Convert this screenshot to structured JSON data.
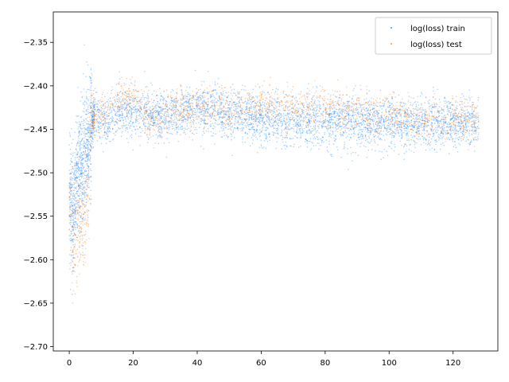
{
  "chart_data": {
    "type": "scatter",
    "title": "",
    "xlabel": "",
    "ylabel": "",
    "xlim": [
      -5,
      134
    ],
    "ylim": [
      -2.705,
      -2.315
    ],
    "xticks": [
      0,
      20,
      40,
      60,
      80,
      100,
      120
    ],
    "yticks": [
      -2.7,
      -2.65,
      -2.6,
      -2.55,
      -2.5,
      -2.45,
      -2.4,
      -2.35
    ],
    "yticklabels": [
      "−2.70",
      "−2.65",
      "−2.60",
      "−2.55",
      "−2.50",
      "−2.45",
      "−2.40",
      "−2.35"
    ],
    "grid": false,
    "legend_position": "upper right",
    "series": [
      {
        "name": "log(loss) train",
        "color": "#0077ff",
        "x_range": [
          0,
          128
        ],
        "trend": [
          [
            0,
            -2.51
          ],
          [
            1,
            -2.55
          ],
          [
            2,
            -2.52
          ],
          [
            3,
            -2.5
          ],
          [
            4,
            -2.49
          ],
          [
            5,
            -2.48
          ],
          [
            6,
            -2.47
          ],
          [
            7,
            -2.44
          ],
          [
            8,
            -2.43
          ],
          [
            10,
            -2.44
          ],
          [
            12,
            -2.445
          ],
          [
            15,
            -2.43
          ],
          [
            20,
            -2.43
          ],
          [
            25,
            -2.435
          ],
          [
            30,
            -2.435
          ],
          [
            40,
            -2.428
          ],
          [
            50,
            -2.432
          ],
          [
            60,
            -2.438
          ],
          [
            70,
            -2.44
          ],
          [
            80,
            -2.44
          ],
          [
            90,
            -2.44
          ],
          [
            100,
            -2.442
          ],
          [
            110,
            -2.442
          ],
          [
            120,
            -2.443
          ],
          [
            128,
            -2.443
          ]
        ],
        "spread": 0.014
      },
      {
        "name": "log(loss) test",
        "color": "#ff7f0e",
        "x_range": [
          0,
          128
        ],
        "trend": [
          [
            0,
            -2.53
          ],
          [
            1,
            -2.58
          ],
          [
            3,
            -2.56
          ],
          [
            5,
            -2.55
          ],
          [
            6,
            -2.52
          ],
          [
            7,
            -2.44
          ],
          [
            10,
            -2.43
          ],
          [
            15,
            -2.415
          ],
          [
            20,
            -2.41
          ],
          [
            25,
            -2.44
          ],
          [
            30,
            -2.43
          ],
          [
            40,
            -2.425
          ],
          [
            50,
            -2.43
          ],
          [
            60,
            -2.42
          ],
          [
            70,
            -2.425
          ],
          [
            80,
            -2.42
          ],
          [
            90,
            -2.43
          ],
          [
            100,
            -2.435
          ],
          [
            110,
            -2.438
          ],
          [
            120,
            -2.44
          ],
          [
            128,
            -2.44
          ]
        ],
        "spread": 0.012
      }
    ]
  }
}
